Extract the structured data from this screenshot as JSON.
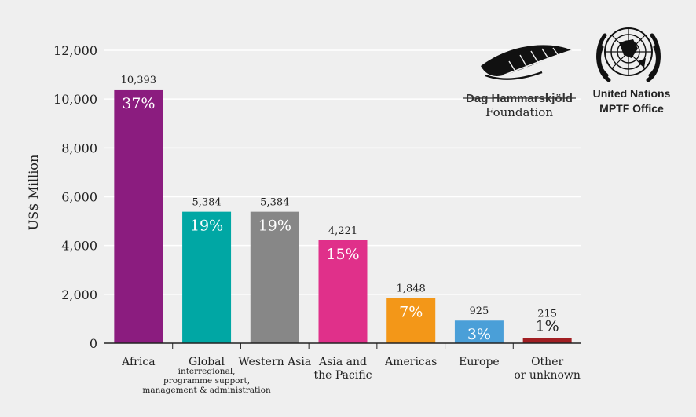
{
  "chart_data": {
    "type": "bar",
    "ylabel": "US$ Million",
    "ylim": [
      0,
      12000
    ],
    "yticks": [
      "0",
      "2,000",
      "4,000",
      "6,000",
      "8,000",
      "10,000",
      "12,000"
    ],
    "ytick_values": [
      0,
      2000,
      4000,
      6000,
      8000,
      10000,
      12000
    ],
    "grid": true,
    "categories": [
      {
        "label": [
          "Africa"
        ],
        "sub": []
      },
      {
        "label": [
          "Global"
        ],
        "sub": [
          "interregional,",
          "programme support,",
          "management & administration"
        ]
      },
      {
        "label": [
          "Western Asia"
        ],
        "sub": []
      },
      {
        "label": [
          "Asia and",
          "the Pacific"
        ],
        "sub": []
      },
      {
        "label": [
          "Americas"
        ],
        "sub": []
      },
      {
        "label": [
          "Europe"
        ],
        "sub": []
      },
      {
        "label": [
          "Other",
          "or unknown"
        ],
        "sub": []
      }
    ],
    "values": [
      10393,
      5384,
      5384,
      4221,
      1848,
      925,
      215
    ],
    "value_labels": [
      "10,393",
      "5,384",
      "5,384",
      "4,221",
      "1,848",
      "925",
      "215"
    ],
    "percent_labels": [
      "37%",
      "19%",
      "19%",
      "15%",
      "7%",
      "3%",
      "1%"
    ],
    "colors": [
      "#8b1c7f",
      "#00a7a4",
      "#878787",
      "#e0308a",
      "#f39718",
      "#4a9fd8",
      "#a11e22"
    ]
  },
  "logos": {
    "dhf_line1": "Dag Hammarskjöld",
    "dhf_line2": "Foundation",
    "un_line1": "United Nations",
    "un_line2": "MPTF Office"
  }
}
